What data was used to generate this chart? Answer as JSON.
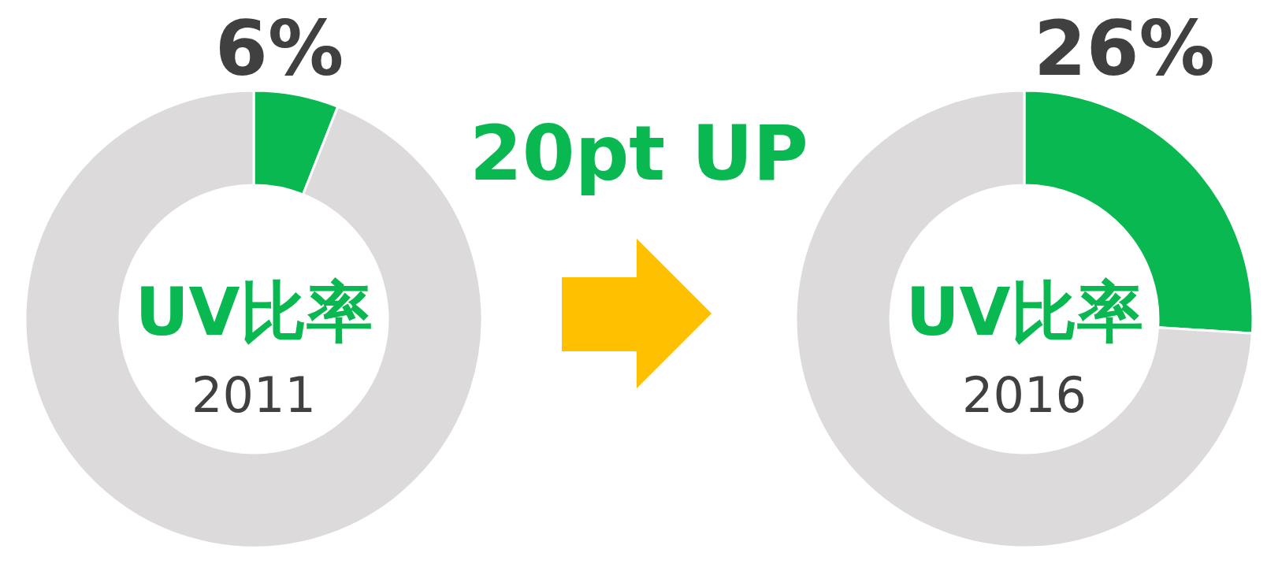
{
  "chart_data": [
    {
      "type": "donut",
      "title": "UV比率",
      "subtitle": "2011",
      "categories": [
        null,
        null
      ],
      "values": [
        6,
        94
      ],
      "colors": [
        "#09b850",
        "#dcdadb"
      ],
      "value_labels": [
        "6%",
        null
      ],
      "annotations": [
        "20pt UP"
      ]
    },
    {
      "type": "donut",
      "title": "UV比率",
      "subtitle": "2016",
      "categories": [
        null,
        null
      ],
      "values": [
        26,
        74
      ],
      "colors": [
        "#09b850",
        "#dcdadb"
      ],
      "value_labels": [
        "26%",
        null
      ]
    }
  ]
}
